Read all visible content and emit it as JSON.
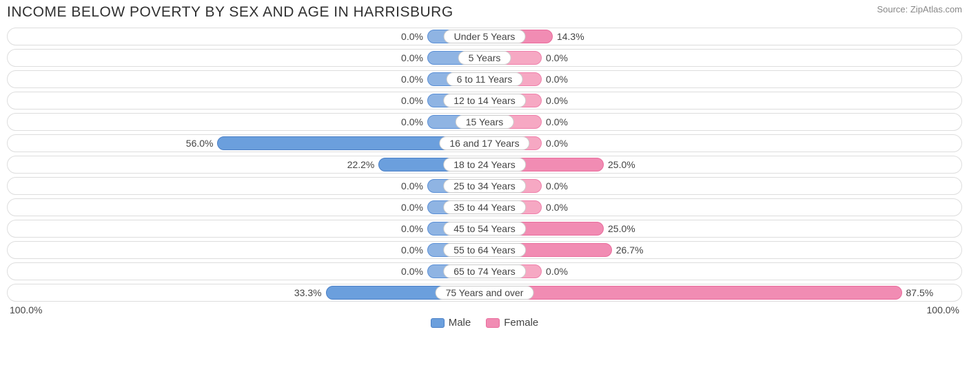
{
  "title": "INCOME BELOW POVERTY BY SEX AND AGE IN HARRISBURG",
  "source": "Source: ZipAtlas.com",
  "axis": {
    "left": "100.0%",
    "right": "100.0%"
  },
  "legend": {
    "male": "Male",
    "female": "Female"
  },
  "colors": {
    "male_fill": "#8fb4e3",
    "male_border": "#5a8fd6",
    "male_strong_fill": "#6b9fdd",
    "male_strong_border": "#4a7fc6",
    "female_fill": "#f6a8c3",
    "female_border": "#ef7faa",
    "female_strong_fill": "#f18cb3",
    "female_strong_border": "#e96b9c",
    "track_border": "#dddddd",
    "text": "#444444"
  },
  "min_bar_pct": 12,
  "rows": [
    {
      "label": "Under 5 Years",
      "male_pct": 0.0,
      "male_txt": "0.0%",
      "female_pct": 14.3,
      "female_txt": "14.3%"
    },
    {
      "label": "5 Years",
      "male_pct": 0.0,
      "male_txt": "0.0%",
      "female_pct": 0.0,
      "female_txt": "0.0%"
    },
    {
      "label": "6 to 11 Years",
      "male_pct": 0.0,
      "male_txt": "0.0%",
      "female_pct": 0.0,
      "female_txt": "0.0%"
    },
    {
      "label": "12 to 14 Years",
      "male_pct": 0.0,
      "male_txt": "0.0%",
      "female_pct": 0.0,
      "female_txt": "0.0%"
    },
    {
      "label": "15 Years",
      "male_pct": 0.0,
      "male_txt": "0.0%",
      "female_pct": 0.0,
      "female_txt": "0.0%"
    },
    {
      "label": "16 and 17 Years",
      "male_pct": 56.0,
      "male_txt": "56.0%",
      "female_pct": 0.0,
      "female_txt": "0.0%"
    },
    {
      "label": "18 to 24 Years",
      "male_pct": 22.2,
      "male_txt": "22.2%",
      "female_pct": 25.0,
      "female_txt": "25.0%"
    },
    {
      "label": "25 to 34 Years",
      "male_pct": 0.0,
      "male_txt": "0.0%",
      "female_pct": 0.0,
      "female_txt": "0.0%"
    },
    {
      "label": "35 to 44 Years",
      "male_pct": 0.0,
      "male_txt": "0.0%",
      "female_pct": 0.0,
      "female_txt": "0.0%"
    },
    {
      "label": "45 to 54 Years",
      "male_pct": 0.0,
      "male_txt": "0.0%",
      "female_pct": 25.0,
      "female_txt": "25.0%"
    },
    {
      "label": "55 to 64 Years",
      "male_pct": 0.0,
      "male_txt": "0.0%",
      "female_pct": 26.7,
      "female_txt": "26.7%"
    },
    {
      "label": "65 to 74 Years",
      "male_pct": 0.0,
      "male_txt": "0.0%",
      "female_pct": 0.0,
      "female_txt": "0.0%"
    },
    {
      "label": "75 Years and over",
      "male_pct": 33.3,
      "male_txt": "33.3%",
      "female_pct": 87.5,
      "female_txt": "87.5%"
    }
  ]
}
